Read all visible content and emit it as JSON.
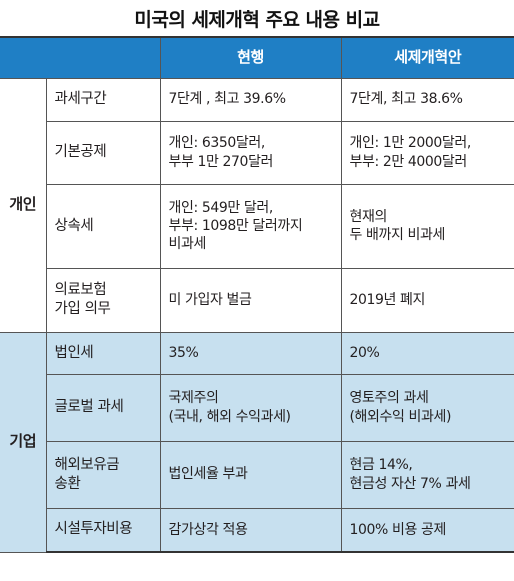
{
  "title": "미국의 세제개혁 주요 내용 비교",
  "header": {
    "corner": "",
    "current": "현행",
    "reform": "세제개혁안"
  },
  "individual": {
    "group_label": "개인",
    "rows": [
      {
        "item": "과세구간",
        "current": "7단계 , 최고 39.6%",
        "reform": "7단계, 최고 38.6%"
      },
      {
        "item": "기본공제",
        "current": "개인: 6350달러,\n부부 1만 270달러",
        "reform": "개인: 1만 2000달러,\n부부: 2만 4000달러"
      },
      {
        "item": "상속세",
        "current": "개인: 549만 달러,\n부부: 1098만 달러까지\n비과세",
        "reform": "현재의\n두 배까지 비과세"
      },
      {
        "item": "의료보험\n가입 의무",
        "current": "미 가입자 벌금",
        "reform": "2019년 폐지"
      }
    ]
  },
  "corporate": {
    "group_label": "기업",
    "rows": [
      {
        "item": "법인세",
        "current": "35%",
        "reform": "20%"
      },
      {
        "item": "글로벌 과세",
        "current": "국제주의\n(국내, 해외 수익과세)",
        "reform": "영토주의 과세\n(해외수익 비과세)"
      },
      {
        "item": "해외보유금\n송환",
        "current": "법인세율 부과",
        "reform": "현금 14%,\n현금성 자산 7% 과세"
      },
      {
        "item": "시설투자비용",
        "current": "감가상각 적용",
        "reform": "100% 비용 공제"
      }
    ]
  },
  "colors": {
    "header_bg": "#1f7fc5",
    "corporate_bg": "#c7e0ef",
    "header_text": "#ffffff"
  }
}
